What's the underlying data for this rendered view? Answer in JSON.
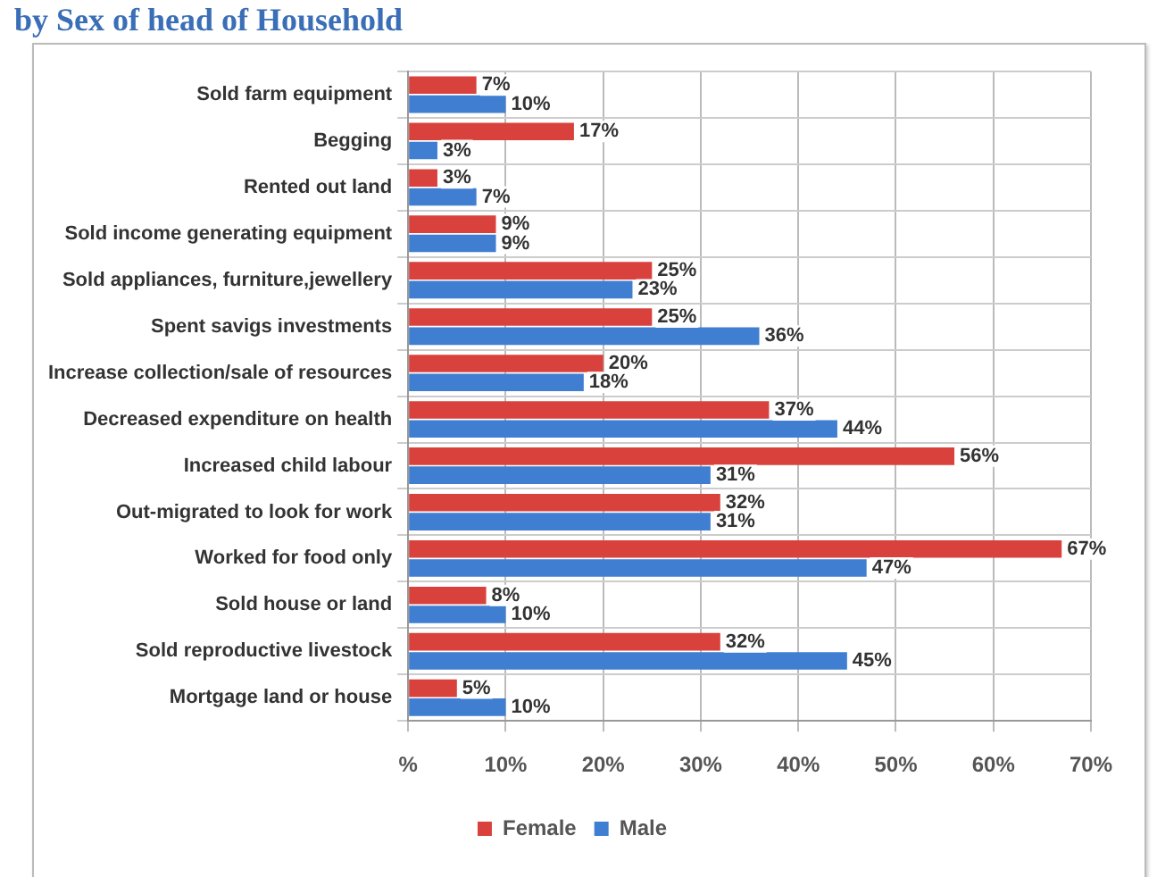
{
  "chart_data": {
    "type": "bar",
    "orientation": "horizontal",
    "title": "by Sex of head of Household",
    "categories": [
      "Sold farm equipment",
      "Begging",
      "Rented out land",
      "Sold income generating equipment",
      "Sold appliances, furniture,jewellery",
      "Spent savigs investments",
      "Increase collection/sale of resources",
      "Decreased expenditure on health",
      "Increased child labour",
      "Out-migrated to look for work",
      "Worked for food only",
      "Sold house or land",
      "Sold reproductive livestock",
      "Mortgage land or house"
    ],
    "series": [
      {
        "name": "Female",
        "color": "#d9423c",
        "values": [
          7,
          17,
          3,
          9,
          25,
          25,
          20,
          37,
          56,
          32,
          67,
          8,
          32,
          5
        ],
        "value_labels": [
          "7%",
          "17%",
          "3%",
          "9%",
          "25%",
          "25%",
          "20%",
          "37%",
          "56%",
          "32%",
          "67%",
          "8%",
          "32%",
          "5%"
        ]
      },
      {
        "name": "Male",
        "color": "#3f7ed0",
        "values": [
          10,
          3,
          7,
          9,
          23,
          36,
          18,
          44,
          31,
          31,
          47,
          10,
          45,
          10
        ],
        "value_labels": [
          "10%",
          "3%",
          "7%",
          "9%",
          "23%",
          "36%",
          "18%",
          "44%",
          "31%",
          "31%",
          "47%",
          "10%",
          "45%",
          "10%"
        ]
      }
    ],
    "xlim": [
      0,
      70
    ],
    "xticks": [
      {
        "value": 0,
        "label": "%"
      },
      {
        "value": 10,
        "label": "10%"
      },
      {
        "value": 20,
        "label": "20%"
      },
      {
        "value": 30,
        "label": "30%"
      },
      {
        "value": 40,
        "label": "40%"
      },
      {
        "value": 50,
        "label": "50%"
      },
      {
        "value": 60,
        "label": "60%"
      },
      {
        "value": 70,
        "label": "70%"
      }
    ],
    "grid": true,
    "legend": "bottom"
  }
}
